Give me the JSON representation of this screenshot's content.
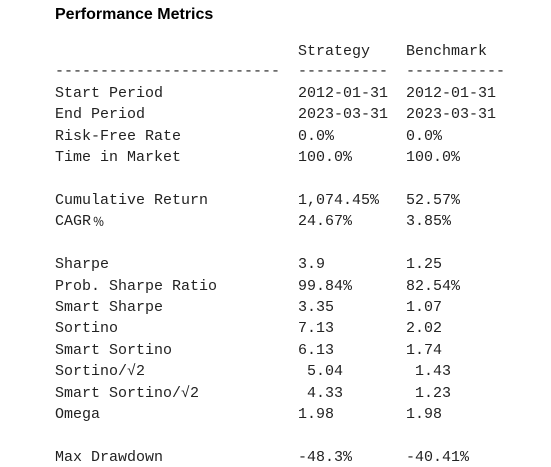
{
  "header": {
    "title": "Performance Metrics"
  },
  "table": {
    "columns": [
      "Strategy",
      "Benchmark"
    ],
    "separators": [
      "-------------------------",
      "----------",
      "-----------"
    ],
    "sections": [
      {
        "rows": [
          [
            "Start Period",
            "2012-01-31",
            "2012-01-31"
          ],
          [
            "End Period",
            "2023-03-31",
            "2023-03-31"
          ],
          [
            "Risk-Free Rate",
            "0.0%",
            "0.0%"
          ],
          [
            "Time in Market",
            "100.0%",
            "100.0%"
          ]
        ]
      },
      {
        "rows": [
          [
            "Cumulative Return",
            "1,074.45%",
            "52.57%"
          ],
          [
            "CAGR﹪",
            "24.67%",
            "3.85%"
          ]
        ]
      },
      {
        "rows": [
          [
            "Sharpe",
            "3.9",
            "1.25"
          ],
          [
            "Prob. Sharpe Ratio",
            "99.84%",
            "82.54%"
          ],
          [
            "Smart Sharpe",
            "3.35",
            "1.07"
          ],
          [
            "Sortino",
            "7.13",
            "2.02"
          ],
          [
            "Smart Sortino",
            "6.13",
            "1.74"
          ],
          [
            "Sortino/√2",
            " 5.04",
            " 1.43"
          ],
          [
            "Smart Sortino/√2",
            " 4.33",
            " 1.23"
          ],
          [
            "Omega",
            "1.98",
            "1.98"
          ]
        ]
      },
      {
        "rows": [
          [
            "Max Drawdown",
            "-48.3%",
            "-40.41%"
          ]
        ]
      }
    ]
  }
}
